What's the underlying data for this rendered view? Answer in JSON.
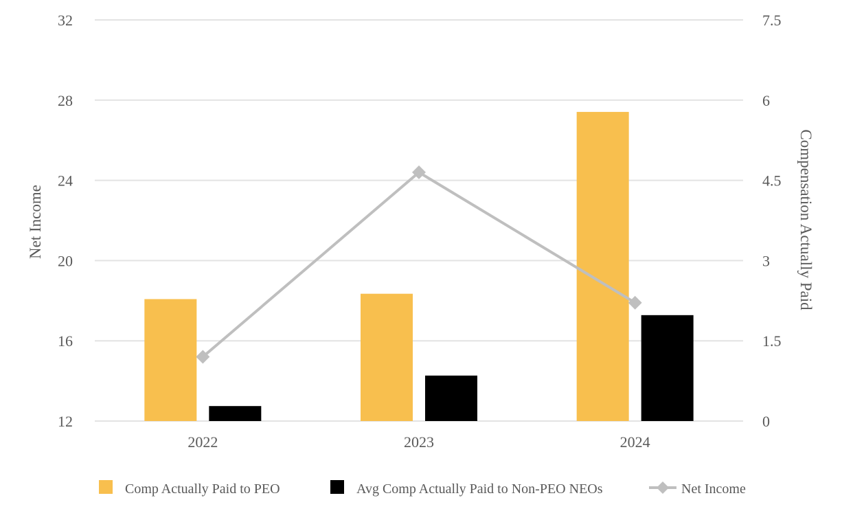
{
  "chart_data": {
    "type": "bar",
    "categories": [
      "2022",
      "2023",
      "2024"
    ],
    "series": [
      {
        "name": "Comp Actually Paid to PEO",
        "kind": "bar",
        "axis": "right",
        "color": "#F8BF4E",
        "values": [
          2.28,
          2.38,
          5.78
        ]
      },
      {
        "name": "Avg Comp Actually Paid to Non-PEO NEOs",
        "kind": "bar",
        "axis": "right",
        "color": "#000000",
        "values": [
          0.28,
          0.85,
          1.98
        ]
      },
      {
        "name": "Net Income",
        "kind": "line",
        "axis": "left",
        "color": "#BFBFBF",
        "marker": "diamond",
        "values": [
          15.2,
          24.4,
          17.9
        ]
      }
    ],
    "left_axis": {
      "label": "Net Income",
      "range": [
        12,
        32
      ],
      "ticks": [
        "12",
        "16",
        "20",
        "24",
        "28",
        "32"
      ]
    },
    "right_axis": {
      "label": "Compensation Actually Paid",
      "range": [
        0,
        7.5
      ],
      "ticks": [
        "0",
        "1.5",
        "3",
        "4.5",
        "6",
        "7.5"
      ]
    },
    "grid": true,
    "legend_position": "bottom"
  }
}
